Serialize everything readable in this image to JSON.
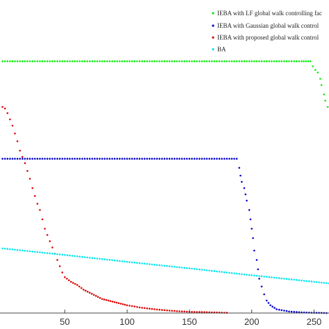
{
  "chart_data": {
    "type": "scatter",
    "title": "",
    "xlabel": "",
    "ylabel": "",
    "xlim": [
      -2,
      262
    ],
    "ylim": [
      0,
      1
    ],
    "x_ticks": [
      50,
      100,
      150,
      200,
      250
    ],
    "grid": false,
    "legend_position": "top-right",
    "series": [
      {
        "name": "IEBA with LF global walk controlling fac",
        "color": "#00ee00",
        "points": [
          [
            0,
            0.806
          ],
          [
            10,
            0.806
          ],
          [
            20,
            0.806
          ],
          [
            30,
            0.806
          ],
          [
            40,
            0.806
          ],
          [
            50,
            0.806
          ],
          [
            60,
            0.806
          ],
          [
            70,
            0.806
          ],
          [
            80,
            0.806
          ],
          [
            90,
            0.806
          ],
          [
            100,
            0.806
          ],
          [
            110,
            0.806
          ],
          [
            120,
            0.806
          ],
          [
            130,
            0.806
          ],
          [
            140,
            0.806
          ],
          [
            150,
            0.806
          ],
          [
            160,
            0.806
          ],
          [
            170,
            0.806
          ],
          [
            180,
            0.806
          ],
          [
            190,
            0.806
          ],
          [
            200,
            0.806
          ],
          [
            210,
            0.806
          ],
          [
            220,
            0.806
          ],
          [
            230,
            0.806
          ],
          [
            240,
            0.806
          ],
          [
            247,
            0.806
          ],
          [
            249,
            0.79
          ],
          [
            251,
            0.778
          ],
          [
            253,
            0.77
          ],
          [
            255,
            0.75
          ],
          [
            256,
            0.73
          ],
          [
            258,
            0.7
          ],
          [
            259,
            0.68
          ],
          [
            261,
            0.66
          ]
        ]
      },
      {
        "name": "IEBA with Gaussian global walk control",
        "color": "#0000cc",
        "points": [
          [
            0,
            0.494
          ],
          [
            10,
            0.494
          ],
          [
            20,
            0.494
          ],
          [
            30,
            0.494
          ],
          [
            40,
            0.494
          ],
          [
            50,
            0.494
          ],
          [
            60,
            0.494
          ],
          [
            70,
            0.494
          ],
          [
            80,
            0.494
          ],
          [
            90,
            0.494
          ],
          [
            100,
            0.494
          ],
          [
            110,
            0.494
          ],
          [
            120,
            0.494
          ],
          [
            130,
            0.494
          ],
          [
            140,
            0.494
          ],
          [
            150,
            0.494
          ],
          [
            160,
            0.494
          ],
          [
            170,
            0.494
          ],
          [
            180,
            0.494
          ],
          [
            188,
            0.494
          ],
          [
            190,
            0.465
          ],
          [
            191,
            0.44
          ],
          [
            192,
            0.42
          ],
          [
            194,
            0.4
          ],
          [
            195,
            0.38
          ],
          [
            196,
            0.36
          ],
          [
            198,
            0.33
          ],
          [
            199,
            0.3
          ],
          [
            200,
            0.27
          ],
          [
            201,
            0.24
          ],
          [
            202,
            0.2
          ],
          [
            204,
            0.17
          ],
          [
            205,
            0.14
          ],
          [
            206,
            0.11
          ],
          [
            208,
            0.085
          ],
          [
            210,
            0.06
          ],
          [
            212,
            0.04
          ],
          [
            215,
            0.025
          ],
          [
            220,
            0.012
          ],
          [
            230,
            0.005
          ],
          [
            240,
            0.002
          ],
          [
            250,
            0.001
          ],
          [
            260,
            0.0
          ]
        ]
      },
      {
        "name": "IEBA with proposed global walk control",
        "color": "#dd0000",
        "points": [
          [
            0,
            0.66
          ],
          [
            2,
            0.655
          ],
          [
            4,
            0.64
          ],
          [
            6,
            0.62
          ],
          [
            8,
            0.6
          ],
          [
            10,
            0.575
          ],
          [
            12,
            0.55
          ],
          [
            14,
            0.52
          ],
          [
            16,
            0.5
          ],
          [
            18,
            0.48
          ],
          [
            20,
            0.455
          ],
          [
            22,
            0.43
          ],
          [
            24,
            0.4
          ],
          [
            26,
            0.375
          ],
          [
            28,
            0.35
          ],
          [
            30,
            0.33
          ],
          [
            32,
            0.3
          ],
          [
            34,
            0.27
          ],
          [
            36,
            0.25
          ],
          [
            38,
            0.23
          ],
          [
            40,
            0.21
          ],
          [
            42,
            0.19
          ],
          [
            44,
            0.17
          ],
          [
            46,
            0.15
          ],
          [
            48,
            0.13
          ],
          [
            50,
            0.115
          ],
          [
            55,
            0.1
          ],
          [
            60,
            0.09
          ],
          [
            65,
            0.075
          ],
          [
            70,
            0.065
          ],
          [
            75,
            0.055
          ],
          [
            80,
            0.045
          ],
          [
            85,
            0.04
          ],
          [
            90,
            0.035
          ],
          [
            95,
            0.03
          ],
          [
            100,
            0.025
          ],
          [
            110,
            0.018
          ],
          [
            120,
            0.013
          ],
          [
            130,
            0.009
          ],
          [
            140,
            0.006
          ],
          [
            150,
            0.004
          ],
          [
            160,
            0.003
          ],
          [
            170,
            0.002
          ],
          [
            180,
            0.001
          ]
        ]
      },
      {
        "name": "BA",
        "color": "#00e5ee",
        "points": [
          [
            0,
            0.207
          ],
          [
            50,
            0.186
          ],
          [
            100,
            0.164
          ],
          [
            150,
            0.143
          ],
          [
            200,
            0.121
          ],
          [
            250,
            0.1
          ],
          [
            262,
            0.095
          ]
        ]
      }
    ]
  }
}
